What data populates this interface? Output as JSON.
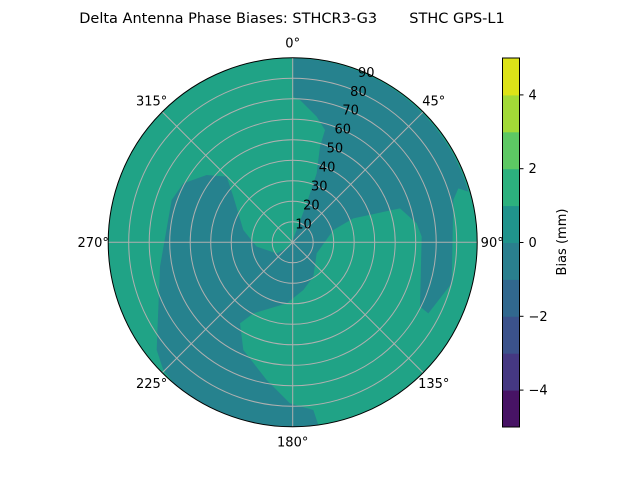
{
  "chart_data": {
    "type": "contour",
    "projection": "polar",
    "title": "Delta Antenna Phase Biases: STHCR3-G3       STHC GPS-L1",
    "theta_direction": "clockwise",
    "theta_zero": "north",
    "theta_ticks": [
      "0°",
      "45°",
      "90°",
      "135°",
      "180°",
      "225°",
      "270°",
      "315°"
    ],
    "theta_tick_values": [
      0,
      45,
      90,
      135,
      180,
      225,
      270,
      315
    ],
    "r_ticks": [
      "10",
      "20",
      "30",
      "40",
      "50",
      "60",
      "70",
      "80",
      "90"
    ],
    "r_tick_values": [
      10,
      20,
      30,
      40,
      50,
      60,
      70,
      80,
      90
    ],
    "rlim": [
      0,
      90
    ],
    "grid": true,
    "colormap": "viridis",
    "levels": [
      -5,
      -4,
      -3,
      -2,
      -1,
      0,
      1,
      2,
      3,
      4,
      5
    ],
    "level_colors": [
      "#471365",
      "#453882",
      "#3b528b",
      "#31688e",
      "#2a7f8e",
      "#20938c",
      "#2cb17e",
      "#5dc863",
      "#a2da37",
      "#dde318"
    ],
    "regions_shown": [
      {
        "range": [
          0,
          1
        ],
        "color": "#21a386"
      },
      {
        "range": [
          -1,
          0
        ],
        "color": "#26828e"
      }
    ],
    "colorbar": {
      "label": "Bias (mm)",
      "ticks": [
        "−4",
        "−2",
        "0",
        "2",
        "4"
      ],
      "tick_values": [
        -4,
        -2,
        0,
        2,
        4
      ],
      "range": [
        -5,
        5
      ]
    }
  }
}
